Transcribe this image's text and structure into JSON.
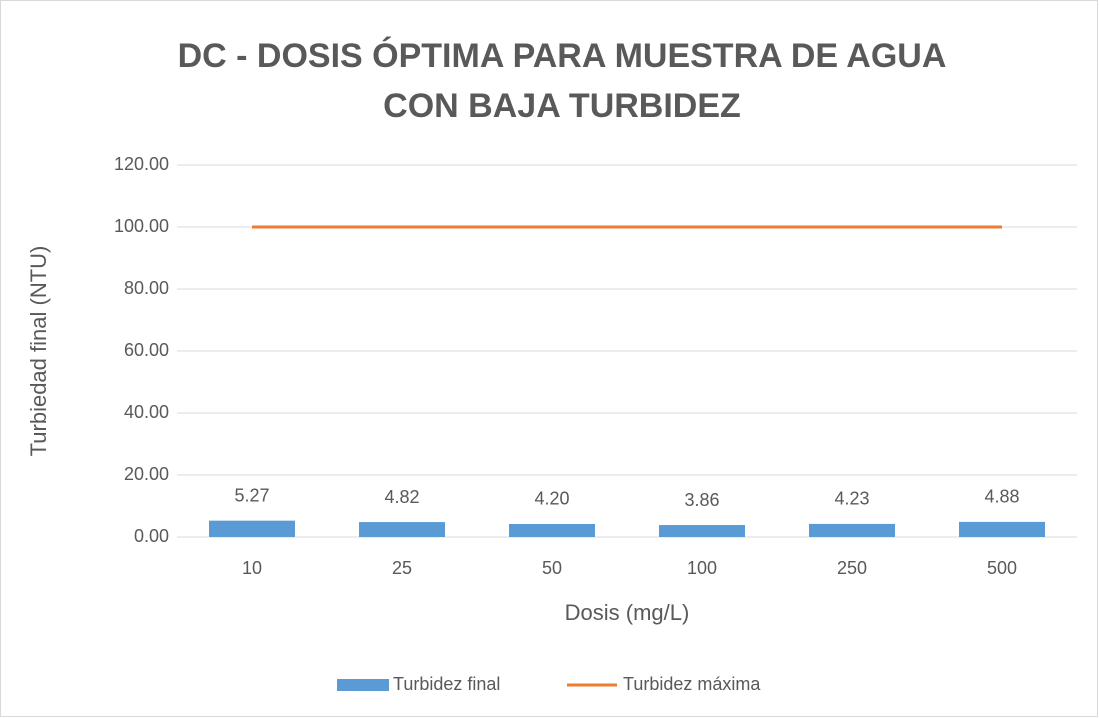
{
  "chart_data": {
    "type": "bar",
    "title": [
      "DC - DOSIS ÓPTIMA PARA MUESTRA DE AGUA",
      "CON BAJA TURBIDEZ"
    ],
    "x_label": "Dosis (mg/L)",
    "y_label": "Turbiedad final (NTU)",
    "categories": [
      "10",
      "25",
      "50",
      "100",
      "250",
      "500"
    ],
    "series": [
      {
        "name": "Turbidez final",
        "type": "bar",
        "color": "#5b9bd5",
        "values": [
          5.27,
          4.82,
          4.2,
          3.86,
          4.23,
          4.88
        ],
        "value_labels": [
          "5.27",
          "4.82",
          "4.20",
          "3.86",
          "4.23",
          "4.88"
        ]
      },
      {
        "name": "Turbidez máxima",
        "type": "line",
        "color": "#ed7d31",
        "values": [
          100,
          100,
          100,
          100,
          100,
          100
        ]
      }
    ],
    "ylim": [
      0,
      120
    ],
    "yticks": [
      {
        "value": 0,
        "label": "0.00"
      },
      {
        "value": 20,
        "label": "20.00"
      },
      {
        "value": 40,
        "label": "40.00"
      },
      {
        "value": 60,
        "label": "60.00"
      },
      {
        "value": 80,
        "label": "80.00"
      },
      {
        "value": 100,
        "label": "100.00"
      },
      {
        "value": 120,
        "label": "120.00"
      }
    ],
    "grid": true,
    "legend": "bottom"
  }
}
